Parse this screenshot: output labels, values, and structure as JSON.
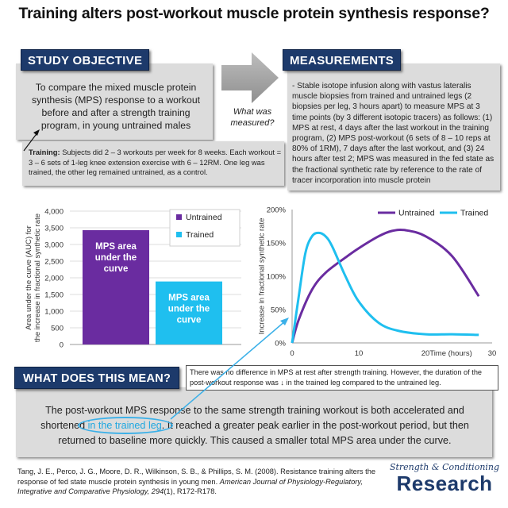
{
  "title": "Training alters post-workout muscle protein synthesis response?",
  "objective": {
    "tag": "STUDY OBJECTIVE",
    "text": "To compare the mixed muscle protein synthesis (MPS) response to a workout before and after a strength training program, in young untrained males"
  },
  "training": {
    "label": "Training:",
    "text": " Subjects did 2 – 3 workouts per week for 8 weeks. Each workout = 3 – 6 sets of 1-leg knee extension exercise with 6 – 12RM. One leg was trained, the other leg remained untrained, as a control."
  },
  "arrow_caption": "What was measured?",
  "measurements": {
    "tag": "MEASUREMENTS",
    "text": "- Stable isotope infusion along with vastus lateralis muscle biopsies from trained and untrained legs (2 biopsies per leg, 3 hours apart) to measure MPS at 3 time points (by 3 different isotopic tracers) as follows: (1) MPS at rest, 4 days after the last workout in the training program, (2) MPS post-workout (6 sets of 8 – 10 reps at 80% of 1RM), 7 days after the last workout, and (3) 24 hours after test 2; MPS was measured in the fed state as the fractional synthetic rate by reference to the rate of tracer incorporation into muscle protein"
  },
  "meaning": {
    "tag": "WHAT DOES THIS MEAN?",
    "note": "There was no difference in MPS at rest after strength training. However, the duration of the post-workout response was ↓ in the trained leg compared to the untrained leg.",
    "text_before": "The post-workout MPS response to the same strength training workout is both accelerated and shortened ",
    "highlight": "in the trained leg",
    "text_after": ". It reached a greater peak earlier in the post-workout period, but then returned to baseline more quickly. This caused a smaller total MPS area under the curve."
  },
  "citation": {
    "plain": "Tang, J. E., Perco, J. G., Moore, D. R., Wilkinson, S. B., & Phillips, S. M. (2008). Resistance training alters the response of fed state muscle protein synthesis in young men. ",
    "journal": "American Journal of Physiology-Regulatory, Integrative and Comparative Physiology, 294",
    "issue": "(1), R172-R178."
  },
  "logo": {
    "top": "Strength & Conditioning",
    "bottom": "Research"
  },
  "colors": {
    "untrained": "#6a2ca0",
    "trained": "#1fbfef",
    "navy": "#1d3a6b",
    "panel": "#dcdcdc"
  },
  "chart_data": [
    {
      "type": "bar",
      "ylabel": "Area under the curve (AUC) for the increase in fractional synthetic rate",
      "ylim": [
        0,
        4000
      ],
      "yticks": [
        "0",
        "500",
        "1,000",
        "1,500",
        "2,000",
        "2,500",
        "3,000",
        "3,500",
        "4,000"
      ],
      "grid": true,
      "legend": "top-right",
      "series": [
        {
          "name": "Untrained",
          "value": 3430,
          "bar_label": "MPS area under the curve",
          "color": "#6a2ca0"
        },
        {
          "name": "Trained",
          "value": 1890,
          "bar_label": "MPS area under the curve",
          "color": "#1fbfef"
        }
      ]
    },
    {
      "type": "line",
      "ylabel": "Increase in fractional synthetic rate",
      "xlabel": "Time (hours)",
      "xlim": [
        0,
        30
      ],
      "ylim": [
        0,
        2.0
      ],
      "xticks": [
        "0",
        "10",
        "20",
        "30"
      ],
      "yticks": [
        "0%",
        "50%",
        "100%",
        "150%",
        "200%"
      ],
      "legend": "top",
      "series": [
        {
          "name": "Untrained",
          "color": "#6a2ca0",
          "x": [
            0,
            1,
            3,
            5,
            8,
            10,
            13,
            15,
            17,
            20,
            24,
            28
          ],
          "y": [
            0,
            0.35,
            0.8,
            1.05,
            1.28,
            1.42,
            1.6,
            1.68,
            1.69,
            1.6,
            1.3,
            0.7
          ]
        },
        {
          "name": "Trained",
          "color": "#1fbfef",
          "x": [
            0,
            1,
            2,
            3,
            4,
            5,
            6,
            8,
            10,
            13,
            16,
            20,
            24,
            28
          ],
          "y": [
            0,
            0.7,
            1.35,
            1.6,
            1.65,
            1.6,
            1.45,
            1.0,
            0.62,
            0.3,
            0.18,
            0.13,
            0.13,
            0.12
          ]
        }
      ]
    }
  ]
}
